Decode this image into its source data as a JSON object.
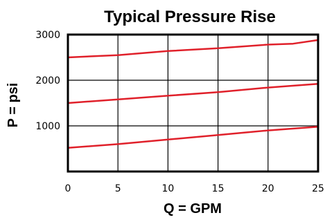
{
  "chart_data": {
    "type": "line",
    "title": "Typical Pressure Rise",
    "xlabel": "Q = GPM",
    "ylabel": "P = psi",
    "xlim": [
      0,
      25
    ],
    "ylim": [
      0,
      3000
    ],
    "x_ticks": [
      0,
      5,
      10,
      15,
      20,
      25
    ],
    "y_ticks": [
      1000,
      2000,
      3000
    ],
    "grid": true,
    "line_color": "#e0202a",
    "series": [
      {
        "x": [
          0,
          5,
          10,
          15,
          20,
          22.5,
          25
        ],
        "values": [
          2500,
          2550,
          2640,
          2700,
          2780,
          2800,
          2880
        ]
      },
      {
        "x": [
          0,
          5,
          10,
          15,
          20,
          25
        ],
        "values": [
          1500,
          1580,
          1660,
          1740,
          1840,
          1920
        ]
      },
      {
        "x": [
          0,
          5,
          10,
          15,
          20,
          25
        ],
        "values": [
          520,
          600,
          700,
          800,
          900,
          980
        ]
      }
    ]
  }
}
